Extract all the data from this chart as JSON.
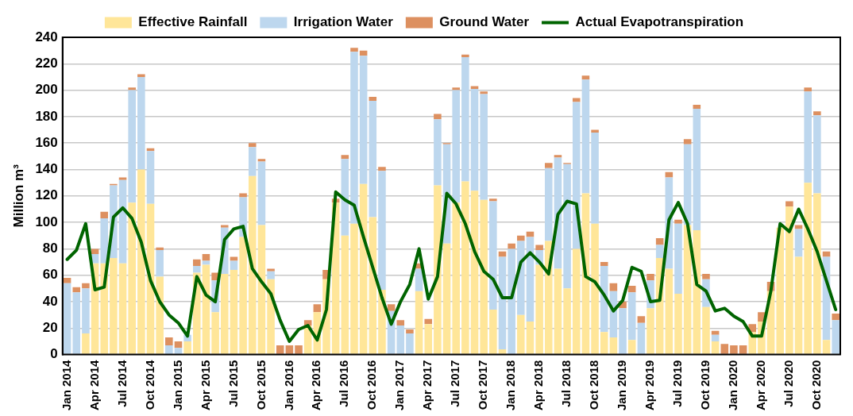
{
  "chart_data": {
    "type": "bar",
    "ylabel": "Million m³",
    "stacked": true,
    "grid": "y",
    "legend": "top",
    "marker": "none",
    "categories": [
      "Jan 2014",
      null,
      null,
      "Apr 2014",
      null,
      null,
      "Jul 2014",
      null,
      null,
      "Oct 2014",
      null,
      null,
      "Jan 2015",
      null,
      null,
      "Apr 2015",
      null,
      null,
      "Jul 2015",
      null,
      null,
      "Oct 2015",
      null,
      null,
      "Jan 2016",
      null,
      null,
      "Apr 2016",
      null,
      null,
      "Jul 2016",
      null,
      null,
      "Oct 2016",
      null,
      null,
      "Jan 2017",
      null,
      null,
      "Apr 2017",
      null,
      null,
      "Jul 2017",
      null,
      null,
      "Oct 2017",
      null,
      null,
      "Jan 2018",
      null,
      null,
      "Apr 2018",
      null,
      null,
      "Jul 2018",
      null,
      null,
      "Oct 2018",
      null,
      null,
      "Jan 2019",
      null,
      null,
      "Apr 2019",
      null,
      null,
      "Jul 2019",
      null,
      null,
      "Oct 2019",
      null,
      null,
      "Jan 2020",
      null,
      null,
      "Apr 2020",
      null,
      null,
      "Jul 2020",
      null,
      null,
      "Oct 2020",
      null,
      null
    ],
    "ylim": [
      0,
      240
    ],
    "yticks": [
      0,
      20,
      40,
      60,
      80,
      100,
      120,
      140,
      160,
      180,
      200,
      220,
      240
    ],
    "series": [
      {
        "name": "Effective Rainfall",
        "color": "#ffe699",
        "values": [
          0,
          0,
          16,
          69,
          69,
          73,
          69,
          115,
          140,
          114,
          59,
          0,
          0,
          10,
          62,
          68,
          32,
          61,
          64,
          89,
          135,
          98,
          57,
          0,
          0,
          0,
          22,
          32,
          57,
          115,
          90,
          99,
          129,
          104,
          49,
          0,
          null,
          0,
          48,
          23,
          128,
          84,
          115,
          131,
          124,
          117,
          34,
          4,
          0,
          30,
          25,
          68,
          86,
          65,
          50,
          80,
          122,
          99,
          17,
          13,
          0,
          11,
          0,
          35,
          73,
          65,
          46,
          98,
          94,
          36,
          10,
          0,
          0,
          0,
          17,
          25,
          48,
          96,
          112,
          74,
          130,
          122,
          11,
          0
        ]
      },
      {
        "name": "Irrigation Water",
        "color": "#bdd7ee",
        "values": [
          54,
          47,
          34,
          7,
          34,
          55,
          63,
          85,
          70,
          40,
          20,
          7,
          5,
          5,
          5,
          3,
          24,
          35,
          7,
          30,
          22,
          48,
          6,
          0,
          0,
          0,
          0,
          0,
          0,
          0,
          58,
          130,
          97,
          88,
          90,
          33,
          22,
          16,
          17,
          0,
          50,
          75,
          85,
          94,
          77,
          80,
          82,
          70,
          80,
          56,
          64,
          11,
          55,
          84,
          94,
          111,
          86,
          69,
          50,
          35,
          35,
          36,
          24,
          21,
          10,
          69,
          53,
          61,
          92,
          21,
          5,
          0,
          0,
          0,
          0,
          0,
          0,
          0,
          0,
          21,
          69,
          59,
          63,
          26
        ]
      },
      {
        "name": "Ground Water",
        "color": "#dd9060",
        "values": [
          4,
          4,
          4,
          4,
          5,
          1,
          2,
          2,
          2,
          2,
          2,
          6,
          5,
          null,
          5,
          5,
          6,
          2,
          3,
          3,
          3,
          2,
          2,
          7,
          7,
          7,
          4,
          6,
          7,
          3,
          3,
          3,
          4,
          3,
          3,
          5,
          4,
          3,
          4,
          4,
          4,
          1,
          2,
          2,
          2,
          2,
          2,
          4,
          4,
          4,
          4,
          4,
          4,
          2,
          1,
          3,
          3,
          2,
          3,
          6,
          5,
          5,
          5,
          5,
          5,
          4,
          3,
          4,
          3,
          4,
          3,
          8,
          7,
          7,
          6,
          7,
          7,
          null,
          4,
          3,
          3,
          3,
          4,
          5
        ]
      },
      {
        "name": "Actual Evapotranspiration",
        "type": "line",
        "color": "#006400",
        "values": [
          72,
          79,
          99,
          49,
          51,
          104,
          111,
          103,
          85,
          56,
          40,
          30,
          24,
          14,
          59,
          45,
          40,
          87,
          95,
          97,
          65,
          55,
          46,
          26,
          10,
          19,
          22,
          11,
          34,
          123,
          117,
          113,
          89,
          66,
          43,
          23,
          40,
          53,
          80,
          42,
          59,
          122,
          114,
          99,
          78,
          63,
          57,
          43,
          43,
          70,
          77,
          70,
          61,
          106,
          116,
          114,
          59,
          55,
          45,
          33,
          41,
          66,
          63,
          40,
          41,
          102,
          115,
          99,
          53,
          48,
          33,
          35,
          29,
          25,
          14,
          14,
          48,
          99,
          93,
          110,
          95,
          78,
          56,
          34
        ]
      }
    ]
  }
}
